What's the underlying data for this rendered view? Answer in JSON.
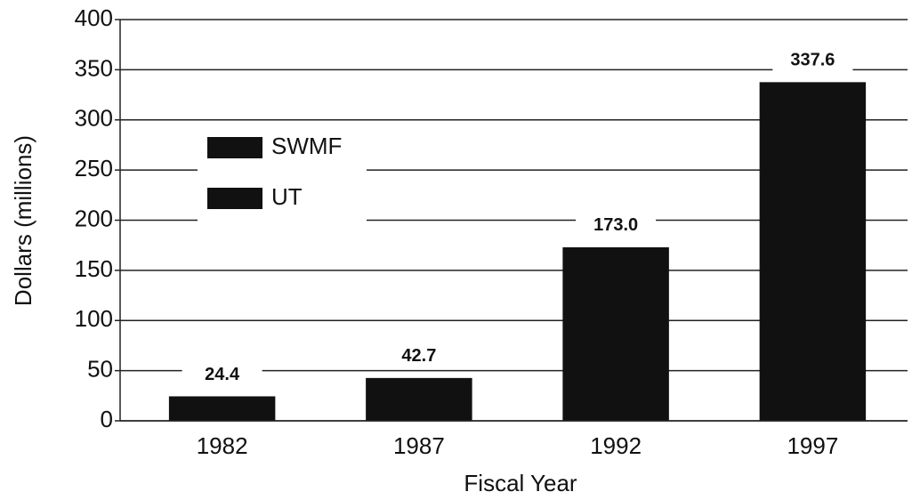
{
  "chart_data": {
    "type": "bar",
    "categories": [
      "1982",
      "1987",
      "1992",
      "1997"
    ],
    "values": [
      24.4,
      42.7,
      173.0,
      337.6
    ],
    "value_labels": [
      "24.4",
      "42.7",
      "173.0",
      "337.6"
    ],
    "color": "#111111",
    "legend": [
      {
        "name": "SWMF",
        "color": "#111111"
      },
      {
        "name": "UT",
        "color": "#111111"
      }
    ],
    "x_label": "Fiscal Year",
    "y_label": "Dollars (millions)",
    "ylim": [
      0,
      400
    ],
    "yticks": [
      0,
      50,
      100,
      150,
      200,
      250,
      300,
      350,
      400
    ],
    "grid": true
  }
}
